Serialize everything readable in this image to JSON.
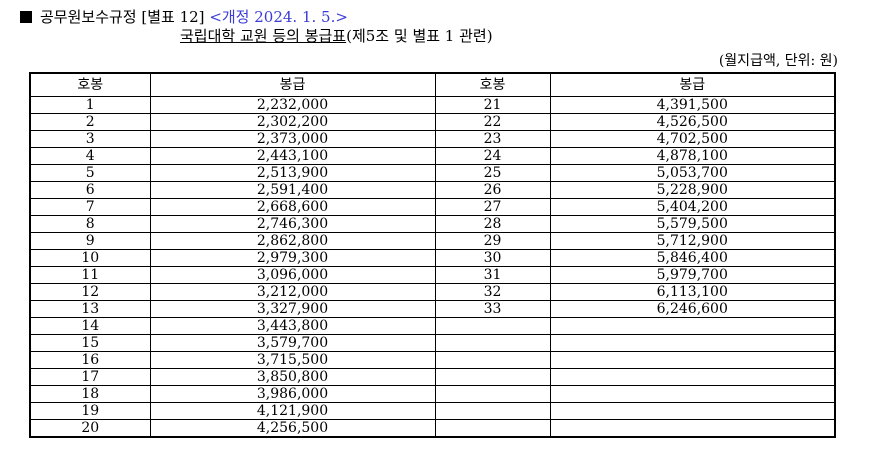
{
  "header": {
    "title": "공무원보수규정 [별표 12]",
    "revision": "<개정 2024. 1. 5.>",
    "subtitle_underlined": "국립대학 교원 등의 봉급표",
    "subtitle_rest": "(제5조 및 별표 1 관련)",
    "unit_note": "(월지급액, 단위: 원)"
  },
  "table": {
    "headers": [
      "호봉",
      "봉급",
      "호봉",
      "봉급"
    ],
    "left_rows": [
      {
        "grade": "1",
        "pay": "2,232,000"
      },
      {
        "grade": "2",
        "pay": "2,302,200"
      },
      {
        "grade": "3",
        "pay": "2,373,000"
      },
      {
        "grade": "4",
        "pay": "2,443,100"
      },
      {
        "grade": "5",
        "pay": "2,513,900"
      },
      {
        "grade": "6",
        "pay": "2,591,400"
      },
      {
        "grade": "7",
        "pay": "2,668,600"
      },
      {
        "grade": "8",
        "pay": "2,746,300"
      },
      {
        "grade": "9",
        "pay": "2,862,800"
      },
      {
        "grade": "10",
        "pay": "2,979,300"
      },
      {
        "grade": "11",
        "pay": "3,096,000"
      },
      {
        "grade": "12",
        "pay": "3,212,000"
      },
      {
        "grade": "13",
        "pay": "3,327,900"
      },
      {
        "grade": "14",
        "pay": "3,443,800"
      },
      {
        "grade": "15",
        "pay": "3,579,700"
      },
      {
        "grade": "16",
        "pay": "3,715,500"
      },
      {
        "grade": "17",
        "pay": "3,850,800"
      },
      {
        "grade": "18",
        "pay": "3,986,000"
      },
      {
        "grade": "19",
        "pay": "4,121,900"
      },
      {
        "grade": "20",
        "pay": "4,256,500"
      }
    ],
    "right_rows": [
      {
        "grade": "21",
        "pay": "4,391,500"
      },
      {
        "grade": "22",
        "pay": "4,526,500"
      },
      {
        "grade": "23",
        "pay": "4,702,500"
      },
      {
        "grade": "24",
        "pay": "4,878,100"
      },
      {
        "grade": "25",
        "pay": "5,053,700"
      },
      {
        "grade": "26",
        "pay": "5,228,900"
      },
      {
        "grade": "27",
        "pay": "5,404,200"
      },
      {
        "grade": "28",
        "pay": "5,579,500"
      },
      {
        "grade": "29",
        "pay": "5,712,900"
      },
      {
        "grade": "30",
        "pay": "5,846,400"
      },
      {
        "grade": "31",
        "pay": "5,979,700"
      },
      {
        "grade": "32",
        "pay": "6,113,100"
      },
      {
        "grade": "33",
        "pay": "6,246,600"
      },
      {
        "grade": "",
        "pay": ""
      },
      {
        "grade": "",
        "pay": ""
      },
      {
        "grade": "",
        "pay": ""
      },
      {
        "grade": "",
        "pay": ""
      },
      {
        "grade": "",
        "pay": ""
      },
      {
        "grade": "",
        "pay": ""
      },
      {
        "grade": "",
        "pay": ""
      }
    ]
  }
}
